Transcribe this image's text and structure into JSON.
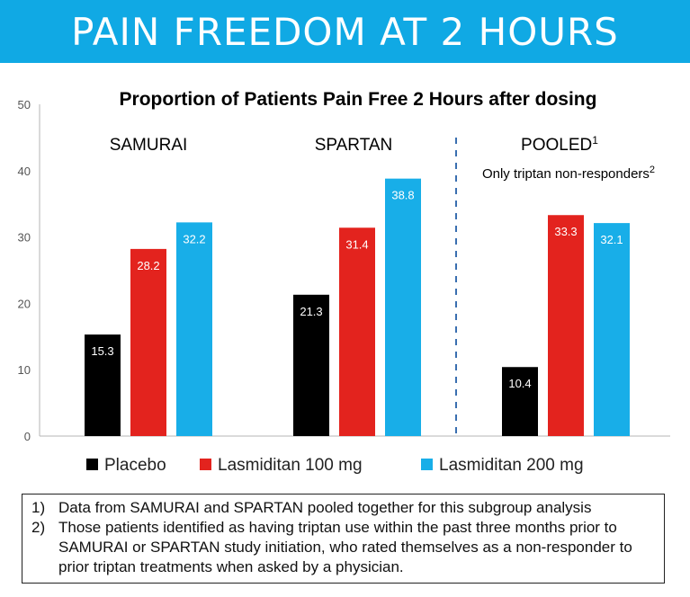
{
  "header": {
    "title": "PAIN FREEDOM AT 2 HOURS"
  },
  "colors": {
    "banner": "#10a9e4",
    "placebo": "#000000",
    "las100": "#e3231e",
    "las200": "#18aee8"
  },
  "chart_data": {
    "type": "bar",
    "title": "Proportion of Patients Pain Free 2 Hours after dosing",
    "ylim": [
      0,
      50
    ],
    "yticks": [
      "0",
      "10",
      "20",
      "30",
      "40",
      "50"
    ],
    "groups": [
      {
        "label": "SAMURAI",
        "sup": "",
        "sublabel": "",
        "sublabel_sup": ""
      },
      {
        "label": "SPARTAN",
        "sup": "",
        "sublabel": "",
        "sublabel_sup": ""
      },
      {
        "label": "POOLED",
        "sup": "1",
        "sublabel": "Only triptan non-responders",
        "sublabel_sup": "2"
      }
    ],
    "series": [
      {
        "name": "Placebo",
        "color": "#000000",
        "values": [
          15.3,
          21.3,
          10.4
        ],
        "labels": [
          "15.3",
          "21.3",
          "10.4"
        ]
      },
      {
        "name": "Lasmiditan 100 mg",
        "color": "#e3231e",
        "values": [
          28.2,
          31.4,
          33.3
        ],
        "labels": [
          "28.2",
          "31.4",
          "33.3"
        ]
      },
      {
        "name": "Lasmiditan 200 mg",
        "color": "#18aee8",
        "values": [
          32.2,
          38.8,
          32.1
        ],
        "labels": [
          "32.2",
          "38.8",
          "32.1"
        ]
      }
    ],
    "grid": false,
    "legend": "bottom"
  },
  "footnotes": [
    {
      "num": "1)",
      "text": "Data from SAMURAI and SPARTAN pooled together for this subgroup analysis"
    },
    {
      "num": "2)",
      "text": "Those patients identified as having triptan use within the past three months prior to SAMURAI or SPARTAN study initiation, who rated themselves as a non-responder to prior triptan treatments when asked by a physician."
    }
  ]
}
